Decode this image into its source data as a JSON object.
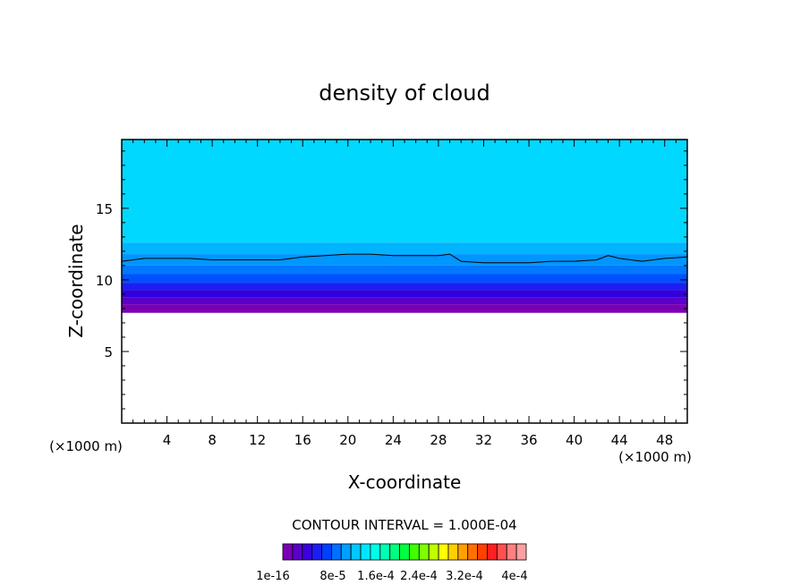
{
  "chart_data": {
    "type": "heatmap",
    "title": "density of cloud",
    "xlabel": "X-coordinate",
    "ylabel": "Z-coordinate",
    "x_unit_left": "(×1000 m)",
    "x_unit_right": "(×1000 m)",
    "xlim": [
      0,
      50
    ],
    "ylim": [
      0,
      19.8
    ],
    "x_ticks": [
      4,
      8,
      12,
      16,
      20,
      24,
      28,
      32,
      36,
      40,
      44,
      48
    ],
    "y_ticks": [
      5,
      10,
      15
    ],
    "contour_interval_text": "CONTOUR INTERVAL = 1.000E-04",
    "colorbar_labels": [
      "1e-16",
      "8e-5",
      "1.6e-4",
      "2.4e-4",
      "3.2e-4",
      "4e-4"
    ],
    "colorbar_colors": [
      "#7a00b4",
      "#5a00c8",
      "#3c00dc",
      "#1e1ef0",
      "#0040ff",
      "#0070ff",
      "#00a0ff",
      "#00c8ff",
      "#00e6ff",
      "#00ffe6",
      "#00ffb4",
      "#00ff80",
      "#00ff40",
      "#40ff00",
      "#80ff00",
      "#c0ff00",
      "#ffff00",
      "#ffd000",
      "#ffa000",
      "#ff7000",
      "#ff4000",
      "#ff2020",
      "#ff5050",
      "#ff8080",
      "#ffa0a0"
    ],
    "layers": [
      {
        "from": 12.6,
        "to": 19.8,
        "color": "#00d8ff"
      },
      {
        "from": 11.8,
        "to": 12.6,
        "color": "#00b4ff"
      },
      {
        "from": 11.0,
        "to": 11.8,
        "color": "#0096ff"
      },
      {
        "from": 10.4,
        "to": 11.0,
        "color": "#0078ff"
      },
      {
        "from": 9.8,
        "to": 10.4,
        "color": "#0050ff"
      },
      {
        "from": 9.3,
        "to": 9.8,
        "color": "#1e1ef0"
      },
      {
        "from": 8.8,
        "to": 9.3,
        "color": "#3000dc"
      },
      {
        "from": 8.3,
        "to": 8.8,
        "color": "#5a00c8"
      },
      {
        "from": 7.7,
        "to": 8.3,
        "color": "#7a00b4"
      }
    ],
    "contour_line_x": [
      0,
      2,
      4,
      6,
      8,
      10,
      12,
      14,
      16,
      18,
      20,
      22,
      24,
      26,
      28,
      29,
      30,
      32,
      34,
      36,
      38,
      40,
      42,
      43,
      44,
      46,
      48,
      50
    ],
    "contour_line_z": [
      11.3,
      11.5,
      11.5,
      11.5,
      11.4,
      11.4,
      11.4,
      11.4,
      11.6,
      11.7,
      11.8,
      11.8,
      11.7,
      11.7,
      11.7,
      11.8,
      11.3,
      11.2,
      11.2,
      11.2,
      11.3,
      11.3,
      11.4,
      11.7,
      11.5,
      11.3,
      11.5,
      11.6
    ]
  }
}
